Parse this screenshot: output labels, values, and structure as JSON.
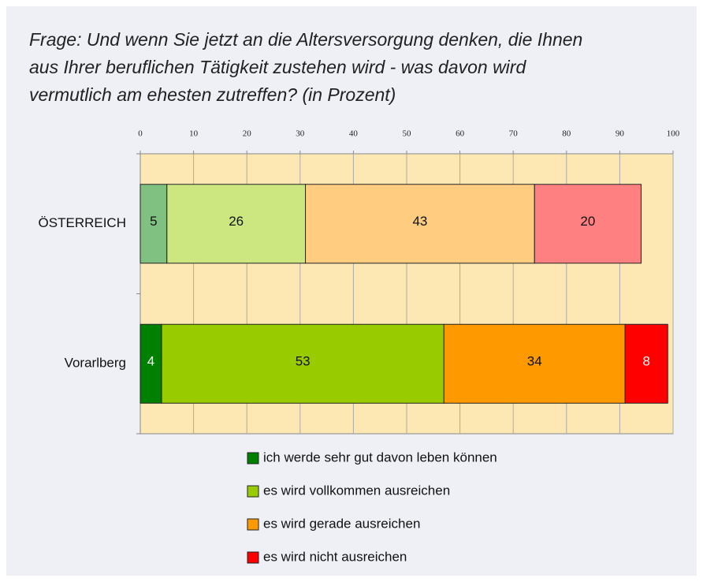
{
  "chart_data": {
    "type": "stacked-bar-horizontal",
    "title": [
      "Frage: Und wenn Sie jetzt an die Altersversorgung denken, die Ihnen",
      "aus Ihrer beruflichen Tätigkeit zustehen wird - was davon wird",
      "vermutlich am ehesten zutreffen? (in Prozent)"
    ],
    "categories": [
      "ÖSTERREICH",
      "Vorarlberg"
    ],
    "series": [
      {
        "name": "ich werde sehr gut davon leben können",
        "color": "#008000",
        "colors": [
          "#80c080",
          "#008000"
        ],
        "values": [
          5,
          4
        ]
      },
      {
        "name": "es wird vollkommen ausreichen",
        "color": "#99cc00",
        "colors": [
          "#cce680",
          "#99cc00"
        ],
        "values": [
          26,
          53
        ]
      },
      {
        "name": "es wird gerade ausreichen",
        "color": "#ff9900",
        "colors": [
          "#ffcc80",
          "#ff9900"
        ],
        "values": [
          43,
          34
        ]
      },
      {
        "name": "es wird nicht ausreichen",
        "color": "#ff0000",
        "colors": [
          "#ff8080",
          "#ff0000"
        ],
        "values": [
          20,
          8
        ]
      }
    ],
    "xlim": [
      0,
      100
    ],
    "xticks": [
      0,
      10,
      20,
      30,
      40,
      50,
      60,
      70,
      80,
      90,
      100
    ],
    "grid": true,
    "legend": "bottom"
  }
}
